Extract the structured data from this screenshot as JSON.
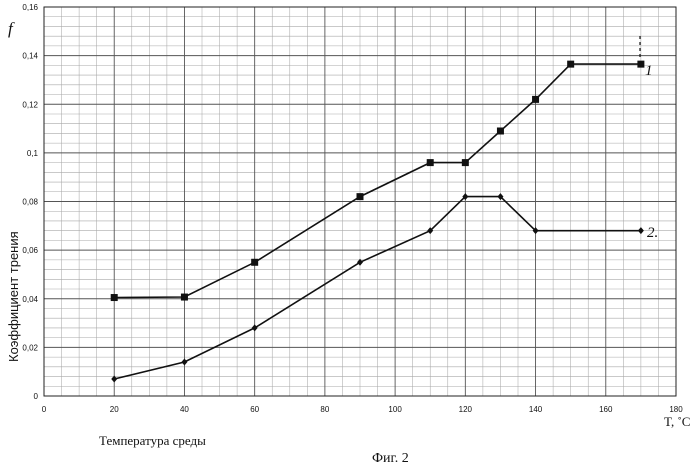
{
  "chart_data": {
    "type": "line",
    "ylabel": "Коэффициент трения",
    "y_symbol": "f",
    "xlabel": "Температура среды",
    "x_unit_label": "T, ˚C",
    "caption": "Фиг. 2",
    "xlim": [
      0,
      180
    ],
    "ylim": [
      0,
      0.16
    ],
    "x_ticks": [
      "0",
      "20",
      "40",
      "60",
      "80",
      "100",
      "120",
      "140",
      "160",
      "180"
    ],
    "y_ticks": [
      "0",
      "0,02",
      "0,04",
      "0,06",
      "0,08",
      "0,1",
      "0,12",
      "0,14",
      "0,16"
    ],
    "grid": true,
    "series": [
      {
        "name": "1",
        "marker": "square",
        "points": [
          [
            20,
            0.0405
          ],
          [
            40,
            0.0407
          ],
          [
            60,
            0.055
          ],
          [
            90,
            0.082
          ],
          [
            110,
            0.096
          ],
          [
            120,
            0.096
          ],
          [
            130,
            0.109
          ],
          [
            140,
            0.122
          ],
          [
            150,
            0.1365
          ],
          [
            170,
            0.1365
          ]
        ]
      },
      {
        "name": "2",
        "marker": "diamond",
        "points": [
          [
            20,
            0.007
          ],
          [
            40,
            0.014
          ],
          [
            60,
            0.028
          ],
          [
            90,
            0.055
          ],
          [
            110,
            0.068
          ],
          [
            120,
            0.082
          ],
          [
            130,
            0.082
          ],
          [
            140,
            0.068
          ],
          [
            170,
            0.068
          ]
        ]
      }
    ],
    "series_labels": [
      "1",
      "2."
    ]
  }
}
